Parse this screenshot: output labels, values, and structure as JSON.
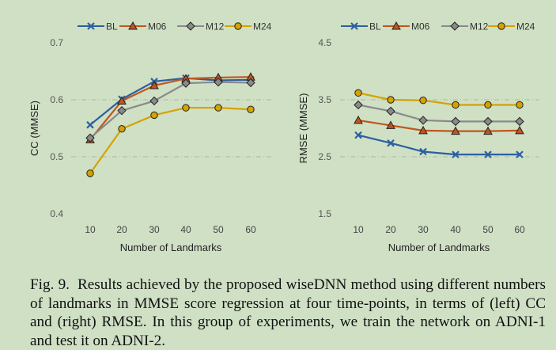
{
  "chart_data": [
    {
      "type": "line",
      "title": "",
      "xlabel": "Number of Landmarks",
      "ylabel": "CC (MMSE)",
      "ylim": [
        0.4,
        0.7
      ],
      "yticks": [
        "0.4",
        "0.5",
        "0.6",
        "0.7"
      ],
      "categories": [
        "10",
        "20",
        "30",
        "40",
        "50",
        "60"
      ],
      "grid": "dash-dot horizontal gridlines",
      "legend": "top",
      "series": [
        {
          "name": "BL",
          "color": "#2e5f9e",
          "marker": "x",
          "values": [
            0.556,
            0.601,
            0.632,
            0.638,
            0.634,
            0.635
          ]
        },
        {
          "name": "M06",
          "color": "#c0561e",
          "marker": "triangle",
          "values": [
            0.53,
            0.598,
            0.625,
            0.637,
            0.639,
            0.64
          ]
        },
        {
          "name": "M12",
          "color": "#8a8a8a",
          "marker": "diamond",
          "values": [
            0.533,
            0.581,
            0.598,
            0.629,
            0.631,
            0.63
          ]
        },
        {
          "name": "M24",
          "color": "#d6a200",
          "marker": "circle",
          "values": [
            0.471,
            0.549,
            0.573,
            0.586,
            0.586,
            0.583
          ]
        }
      ]
    },
    {
      "type": "line",
      "title": "",
      "xlabel": "Number of Landmarks",
      "ylabel": "RMSE (MMSE)",
      "ylim": [
        1.5,
        4.5
      ],
      "yticks": [
        "1.5",
        "2.5",
        "3.5",
        "4.5"
      ],
      "categories": [
        "10",
        "20",
        "30",
        "40",
        "50",
        "60"
      ],
      "grid": "dash-dot horizontal gridlines",
      "legend": "top",
      "series": [
        {
          "name": "BL",
          "color": "#2e5f9e",
          "marker": "x",
          "values": [
            2.88,
            2.74,
            2.59,
            2.54,
            2.54,
            2.54
          ]
        },
        {
          "name": "M06",
          "color": "#c0561e",
          "marker": "triangle",
          "values": [
            3.14,
            3.05,
            2.96,
            2.95,
            2.95,
            2.96
          ]
        },
        {
          "name": "M12",
          "color": "#8a8a8a",
          "marker": "diamond",
          "values": [
            3.41,
            3.3,
            3.14,
            3.12,
            3.12,
            3.12
          ]
        },
        {
          "name": "M24",
          "color": "#d6a200",
          "marker": "circle",
          "values": [
            3.62,
            3.5,
            3.49,
            3.41,
            3.41,
            3.41
          ]
        }
      ]
    }
  ],
  "caption": {
    "label": "Fig. 9.",
    "text": "Results achieved by the proposed wiseDNN method using different numbers of landmarks in MMSE score regression at four time-points, in terms of (left) CC and (right) RMSE. In this group of experiments, we train the network on ADNI-1 and test it on ADNI-2."
  }
}
